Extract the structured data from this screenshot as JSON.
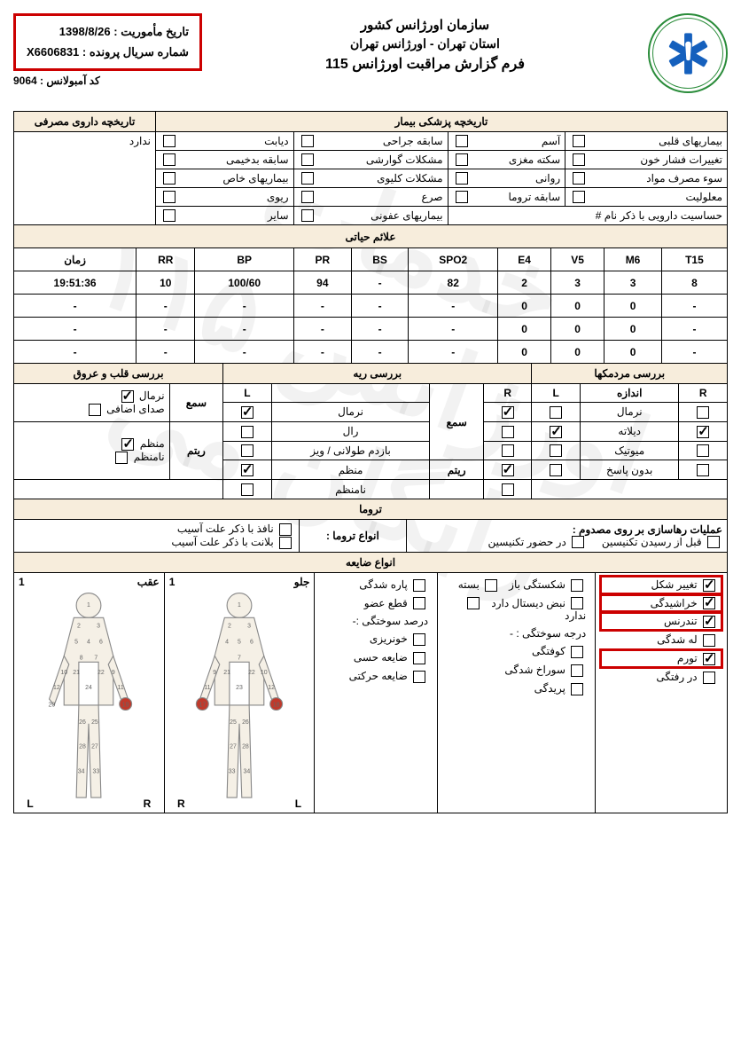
{
  "header": {
    "org": "سازمان اورژانس کشور",
    "region": "استان تهران - اورژانس تهران",
    "form_title": "فرم گزارش مراقبت اورژانس 115",
    "mission_date_label": "تاریخ مأموریت :",
    "mission_date": "1398/8/26",
    "serial_label": "شماره سریال پرونده :",
    "serial": "X6606831",
    "amb_label": "کد آمبولانس :",
    "amb_code": "9064"
  },
  "watermark": "خدمات اورژانس ۱۱۵ رایگان می",
  "history": {
    "med_head": "تاریخچه پزشکی بیمار",
    "drug_head": "تاریخچه داروی مصرفی",
    "drug_none": "ندارد",
    "rows": [
      [
        "بیماریهای قلبی",
        "آسم",
        "سابقه جراحی",
        "دیابت"
      ],
      [
        "تغییرات فشار خون",
        "سکته مغزی",
        "مشکلات گوارشی",
        "سابقه بدخیمی"
      ],
      [
        "سوء مصرف مواد",
        "روانی",
        "مشکلات کلیوی",
        "بیماریهای خاص"
      ],
      [
        "معلولیت",
        "سابقه تروما",
        "صرع",
        "ریوی"
      ],
      [
        "حساسیت دارویی با ذکر نام  #",
        "",
        "بیماریهای عفونی",
        "سایر"
      ]
    ]
  },
  "vitals": {
    "head": "علائم حیاتی",
    "cols": [
      "T15",
      "M6",
      "V5",
      "E4",
      "SPO2",
      "BS",
      "PR",
      "BP",
      "RR",
      "زمان"
    ],
    "rows": [
      [
        "8",
        "3",
        "3",
        "2",
        "82",
        "-",
        "94",
        "100/60",
        "10",
        "19:51:36"
      ],
      [
        "-",
        "0",
        "0",
        "0",
        "-",
        "-",
        "-",
        "-",
        "-",
        "-"
      ],
      [
        "-",
        "0",
        "0",
        "0",
        "-",
        "-",
        "-",
        "-",
        "-",
        "-"
      ],
      [
        "-",
        "0",
        "0",
        "0",
        "-",
        "-",
        "-",
        "-",
        "-",
        "-"
      ]
    ]
  },
  "exam": {
    "pupils_head": "بررسی مردمکها",
    "lung_head": "بررسی ریه",
    "heart_head": "بررسی قلب و عروق",
    "size": "اندازه",
    "normal": "نرمال",
    "dilated": "دیلاته",
    "miotic": "میوتیک",
    "noresp": "بدون پاسخ",
    "sama": "سمع",
    "ral": "رال",
    "wheeze": "بازدم طولانی / ویز",
    "rhythm": "ریتم",
    "regular": "منظم",
    "irregular": "نامنظم",
    "extra": "صدای اضافی",
    "R": "R",
    "L": "L"
  },
  "trauma": {
    "head": "تروما",
    "ops": "عملیات رهاسازی بر روی مصدوم :",
    "before": "قبل از رسیدن تکنیسین",
    "presence": "در حضور تکنیسین",
    "types": "انواع تروما :",
    "blunt": "نافذ با ذکر علت آسیب",
    "penet": "بلانت با ذکر علت آسیب"
  },
  "injury": {
    "head": "انواع ضایعه",
    "deform": "تغییر شکل",
    "fracture_open": "شکستگی   باز",
    "fracture_close": "بسته",
    "lacer": "پاره شدگی",
    "abrasion": "خراشیدگی",
    "pulse_distal": "نبض دیستال  دارد",
    "pulse_none": "ندارد",
    "amput": "قطع عضو",
    "tender": "تندرنس",
    "burn_deg": "درجه سوختگی : -",
    "crush": "له شدگی",
    "contusion": "کوفتگی",
    "burn_pct": "درصد سوختگی :-",
    "swell": "تورم",
    "punct": "سوراخ شدگی",
    "bleed": "خونریزی",
    "disloc": "در رفتگی",
    "pale": "پریدگی",
    "sens": "ضایعه حسی",
    "motor": "ضایعه حرکتی",
    "front": "جلو",
    "back": "عقب",
    "one": "1"
  }
}
